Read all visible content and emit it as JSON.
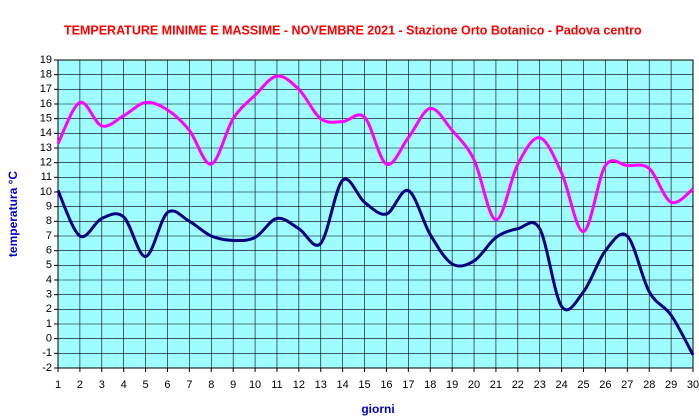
{
  "chart_data": {
    "type": "line",
    "title": "TEMPERATURE MINIME E MASSIME  - NOVEMBRE   2021 - Stazione Orto Botanico - Padova centro",
    "x_label": "giorni",
    "y_label": "temperatura °C",
    "x": [
      1,
      2,
      3,
      4,
      5,
      6,
      7,
      8,
      9,
      10,
      11,
      12,
      13,
      14,
      15,
      16,
      17,
      18,
      19,
      20,
      21,
      22,
      23,
      24,
      25,
      26,
      27,
      28,
      29,
      30
    ],
    "xlim": [
      1,
      30
    ],
    "xticks": [
      1,
      2,
      3,
      4,
      5,
      6,
      7,
      8,
      9,
      10,
      11,
      12,
      13,
      14,
      15,
      16,
      17,
      18,
      19,
      20,
      21,
      22,
      23,
      24,
      25,
      26,
      27,
      28,
      29,
      30
    ],
    "ylim": [
      -2,
      19
    ],
    "yticks": [
      -2,
      -1,
      0,
      1,
      2,
      3,
      4,
      5,
      6,
      7,
      8,
      9,
      10,
      11,
      12,
      13,
      14,
      15,
      16,
      17,
      18,
      19
    ],
    "grid": true,
    "background": "#9ffcff",
    "series": [
      {
        "color": "#ff00ff",
        "values": [
          13.3,
          16.1,
          14.5,
          15.2,
          16.1,
          15.6,
          14.2,
          11.9,
          15.0,
          16.6,
          17.9,
          17.0,
          15.0,
          14.8,
          15.1,
          11.9,
          13.7,
          15.7,
          14.2,
          12.2,
          8.1,
          11.9,
          13.7,
          11.3,
          7.3,
          11.8,
          11.8,
          11.6,
          9.3,
          10.2
        ]
      },
      {
        "color": "#000080",
        "values": [
          10.1,
          7.0,
          8.2,
          8.3,
          5.6,
          8.6,
          8.0,
          7.0,
          6.7,
          6.9,
          8.2,
          7.5,
          6.5,
          10.8,
          9.3,
          8.5,
          10.1,
          7.1,
          5.1,
          5.3,
          6.9,
          7.5,
          7.5,
          2.2,
          3.2,
          6.0,
          7.0,
          3.2,
          1.6,
          -1.1
        ]
      }
    ]
  }
}
